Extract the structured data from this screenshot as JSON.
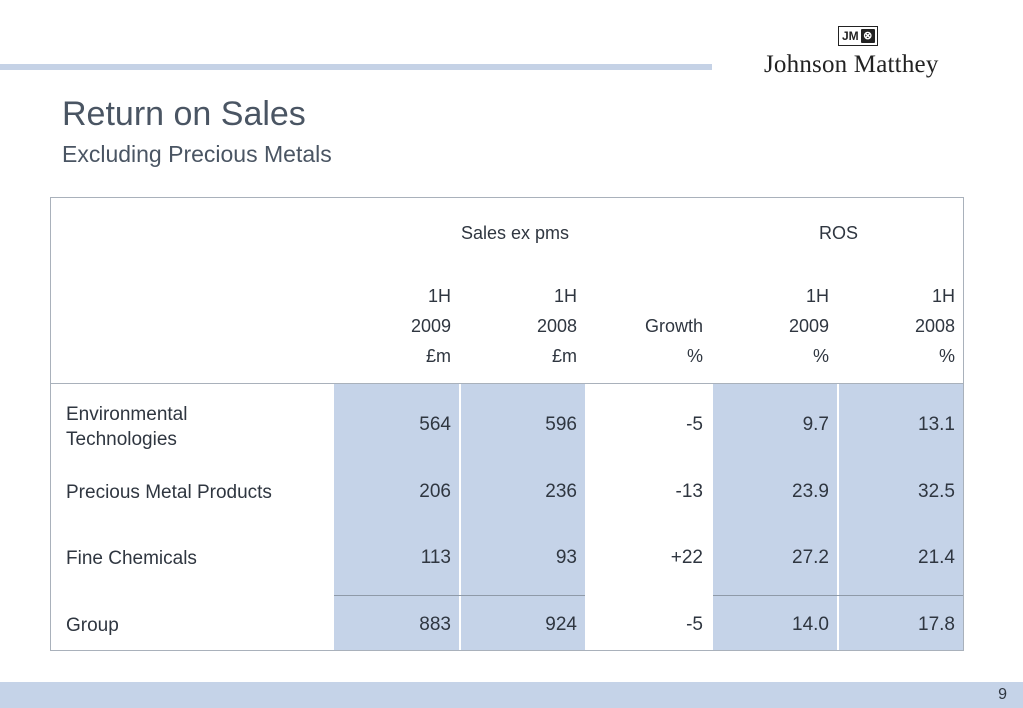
{
  "logo": {
    "badge_text": "JM",
    "badge_symbol": "⊗",
    "company": "Johnson Matthey"
  },
  "title": "Return on Sales",
  "subtitle": "Excluding Precious Metals",
  "table": {
    "group_headers": {
      "sales": "Sales ex pms",
      "ros": "ROS"
    },
    "columns": [
      {
        "line1": "1H",
        "line2": "2009",
        "line3": "£m"
      },
      {
        "line1": "1H",
        "line2": "2008",
        "line3": "£m"
      },
      {
        "line1": "",
        "line2": "Growth",
        "line3": "%"
      },
      {
        "line1": "1H",
        "line2": "2009",
        "line3": "%"
      },
      {
        "line1": "1H",
        "line2": "2008",
        "line3": "%"
      }
    ],
    "rows": [
      {
        "label": "Environmental Technologies",
        "values": [
          "564",
          "596",
          "-5",
          "9.7",
          "13.1"
        ]
      },
      {
        "label": "Precious Metal Products",
        "values": [
          "206",
          "236",
          "-13",
          "23.9",
          "32.5"
        ]
      },
      {
        "label": "Fine Chemicals",
        "values": [
          "113",
          "93",
          "+22",
          "27.2",
          "21.4"
        ]
      },
      {
        "label": "Group",
        "values": [
          "883",
          "924",
          "-5",
          "14.0",
          "17.8"
        ]
      }
    ]
  },
  "page_number": "9",
  "colors": {
    "accent": "#c5d3e8",
    "text": "#2f3640",
    "title": "#4a5563"
  }
}
